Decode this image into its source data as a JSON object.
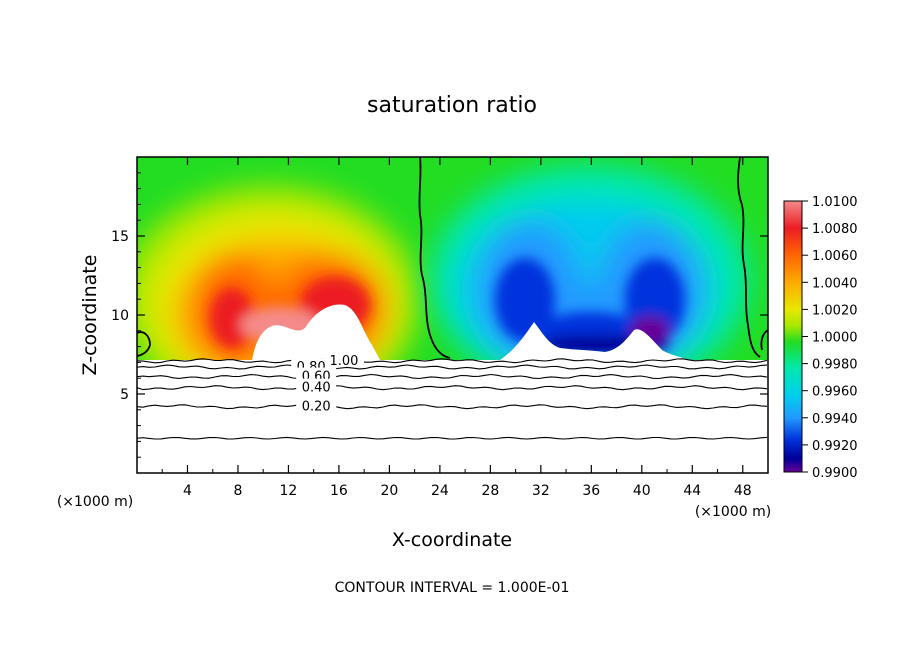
{
  "chart_data": {
    "type": "heatmap",
    "title": "saturation ratio",
    "xlabel": "X-coordinate",
    "ylabel": "Z-coordinate",
    "x_unit_label": "(×1000 m)",
    "y_unit_label": "(×1000 m)",
    "xlim": [
      0,
      50
    ],
    "ylim": [
      0,
      20
    ],
    "x_ticks": [
      4,
      8,
      12,
      16,
      20,
      24,
      28,
      32,
      36,
      40,
      44,
      48
    ],
    "y_ticks": [
      5,
      10,
      15
    ],
    "colorbar": {
      "min": 0.99,
      "max": 1.01,
      "tick_labels": [
        "1.0100",
        "1.0080",
        "1.0060",
        "1.0040",
        "1.0020",
        "1.0000",
        "0.9980",
        "0.9960",
        "0.9940",
        "0.9920",
        "0.9900"
      ],
      "colors": [
        "#f58a8a",
        "#ec1c24",
        "#ff6600",
        "#ffaa00",
        "#e8e800",
        "#a8e800",
        "#22dd22",
        "#00e8b0",
        "#00ccee",
        "#2299ff",
        "#0033dd",
        "#000099",
        "#660099"
      ]
    },
    "contour_lines": [
      {
        "label": "1.00",
        "z": 7.1,
        "x_label": 16.4
      },
      {
        "label": "0.80",
        "z": 6.7,
        "x_label": 13.8
      },
      {
        "label": "0.60",
        "z": 6.1,
        "x_label": 14.2
      },
      {
        "label": "0.40",
        "z": 5.4,
        "x_label": 14.2
      },
      {
        "label": "0.20",
        "z": 4.2,
        "x_label": 14.2
      }
    ],
    "grid": false,
    "legend": "right colorbar",
    "annotation": "CONTOUR INTERVAL = 1.000E-01"
  }
}
